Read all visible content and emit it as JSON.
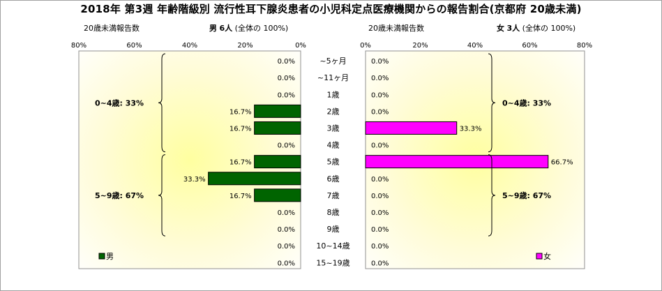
{
  "title": "2018年 第3週 年齢階級別 流行性耳下腺炎患者の小児科定点医療機関からの報告割合(京都府 20歳未満)",
  "left_header": {
    "caption": "20歳未満報告数",
    "sex": "男",
    "count": "6人",
    "share": "(全体の 100%)"
  },
  "right_header": {
    "caption": "20歳未満報告数",
    "sex": "女",
    "count": "3人",
    "share": "(全体の 100%)"
  },
  "chart_data": {
    "type": "bar",
    "orientation": "horizontal-butterfly",
    "categories": [
      "~5ヶ月",
      "~11ヶ月",
      "1歳",
      "2歳",
      "3歳",
      "4歳",
      "5歳",
      "6歳",
      "7歳",
      "8歳",
      "9歳",
      "10~14歳",
      "15~19歳"
    ],
    "series": [
      {
        "name": "男",
        "color": "#006400",
        "values": [
          0.0,
          0.0,
          0.0,
          16.7,
          16.7,
          0.0,
          16.7,
          33.3,
          16.7,
          0.0,
          0.0,
          0.0,
          0.0
        ]
      },
      {
        "name": "女",
        "color": "#ff00ff",
        "values": [
          0.0,
          0.0,
          0.0,
          0.0,
          33.3,
          0.0,
          66.7,
          0.0,
          0.0,
          0.0,
          0.0,
          0.0,
          0.0
        ]
      }
    ],
    "xlim": [
      0,
      80
    ],
    "x_ticks": [
      "0%",
      "20%",
      "40%",
      "60%",
      "80%"
    ],
    "value_suffix": "%",
    "annotations": [
      {
        "panel": "left",
        "text": "0~4歳: 33%",
        "from": 0,
        "to": 5
      },
      {
        "panel": "left",
        "text": "5~9歳: 67%",
        "from": 6,
        "to": 10
      },
      {
        "panel": "right",
        "text": "0~4歳: 33%",
        "from": 0,
        "to": 5
      },
      {
        "panel": "right",
        "text": "5~9歳: 67%",
        "from": 6,
        "to": 10
      }
    ],
    "legend_position": "bottom-left / bottom-right",
    "grid": false
  }
}
